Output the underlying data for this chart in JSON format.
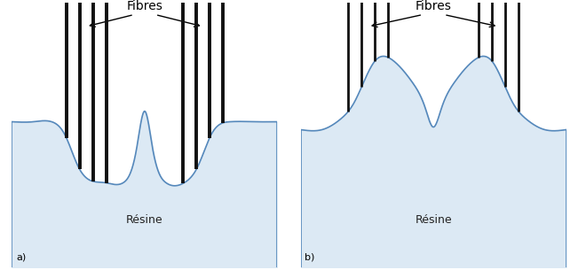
{
  "fig_width": 6.51,
  "fig_height": 3.05,
  "dpi": 100,
  "background_color": "#ffffff",
  "resin_fill_color": "#dce9f4",
  "resin_line_color": "#5588bb",
  "fiber_color": "#111111",
  "fiber_lw_a": 2.8,
  "fiber_lw_b": 2.0,
  "resin_line_lw": 1.2,
  "label_fibres": "Fibres",
  "label_resine": "Résine",
  "label_a": "a)",
  "label_b": "b)",
  "font_size_fibres": 10,
  "font_size_resine": 9,
  "font_size_ab": 8
}
